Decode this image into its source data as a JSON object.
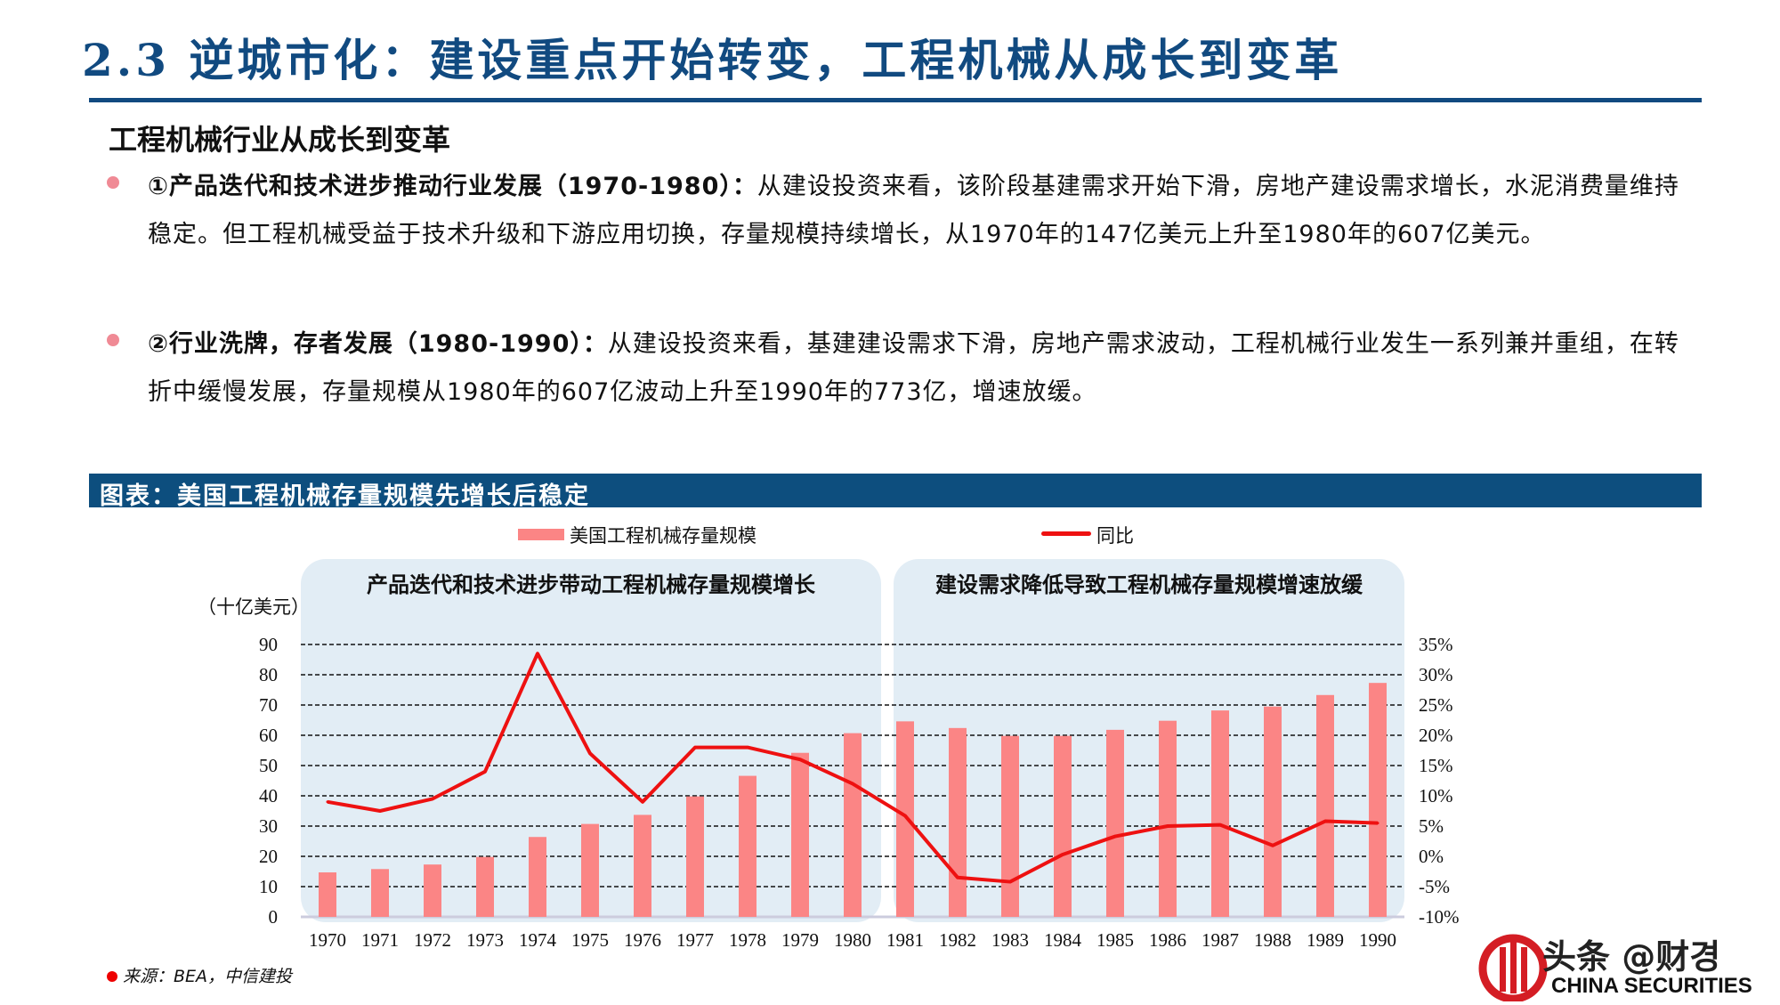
{
  "header": {
    "title": "2.3 逆城市化：建设重点开始转变，工程机械从成长到变革"
  },
  "section": {
    "subheading": "工程机械行业从成长到变革",
    "bullets": [
      {
        "lead": "①产品迭代和技术进步推动行业发展（1970-1980）：",
        "body": "从建设投资来看，该阶段基建需求开始下滑，房地产建设需求增长，水泥消费量维持稳定。但工程机械受益于技术升级和下游应用切换，存量规模持续增长，从1970年的147亿美元上升至1980年的607亿美元。"
      },
      {
        "lead": "②行业洗牌，存者发展（1980-1990）：",
        "body": "从建设投资来看，基建建设需求下滑，房地产需求波动，工程机械行业发生一系列兼并重组，在转折中缓慢发展，存量规模从1980年的607亿波动上升至1990年的773亿，增速放缓。"
      }
    ]
  },
  "chart_header": "图表：美国工程机械存量规模先增长后稳定",
  "chart_data": {
    "type": "bar+line",
    "categories": [
      "1970",
      "1971",
      "1972",
      "1973",
      "1974",
      "1975",
      "1976",
      "1977",
      "1978",
      "1979",
      "1980",
      "1981",
      "1982",
      "1983",
      "1984",
      "1985",
      "1986",
      "1987",
      "1988",
      "1989",
      "1990"
    ],
    "series": [
      {
        "name": "美国工程机械存量规模",
        "type": "bar",
        "axis": "left",
        "color": "#fb8585",
        "values": [
          14.7,
          15.8,
          17.3,
          19.8,
          26.4,
          30.7,
          33.7,
          39.8,
          46.6,
          54.2,
          60.7,
          64.6,
          62.4,
          59.8,
          59.8,
          61.8,
          64.8,
          68.2,
          69.5,
          73.3,
          77.3
        ]
      },
      {
        "name": "同比",
        "type": "line",
        "axis": "right",
        "color": "#ee1111",
        "values": [
          9.0,
          7.5,
          9.5,
          14.0,
          33.5,
          17.0,
          9.0,
          18.0,
          18.0,
          16.0,
          12.0,
          6.7,
          -3.5,
          -4.2,
          0.3,
          3.3,
          5.0,
          5.2,
          1.8,
          5.8,
          5.5
        ]
      }
    ],
    "ylabel": "（十亿美元）",
    "ylim": [
      0,
      90
    ],
    "yticks": [
      "0",
      "10",
      "20",
      "30",
      "40",
      "50",
      "60",
      "70",
      "80",
      "90"
    ],
    "y2lim": [
      -10,
      35
    ],
    "y2ticks": [
      "-10%",
      "-5%",
      "0%",
      "5%",
      "10%",
      "15%",
      "20%",
      "25%",
      "30%",
      "35%"
    ],
    "grid": true,
    "legend": "top",
    "annotations": [
      {
        "text": "产品迭代和技术进步带动工程机械存量规模增长",
        "span": [
          "1970",
          "1980"
        ]
      },
      {
        "text": "建设需求降低导致工程机械存量规模增速放缓",
        "span": [
          "1981",
          "1990"
        ]
      }
    ],
    "panel_color": "#e2edf5"
  },
  "source": "来源：BEA，中信建投",
  "logo": {
    "text": "CHINA SECURITIES",
    "watermark": "头条 @财경"
  }
}
